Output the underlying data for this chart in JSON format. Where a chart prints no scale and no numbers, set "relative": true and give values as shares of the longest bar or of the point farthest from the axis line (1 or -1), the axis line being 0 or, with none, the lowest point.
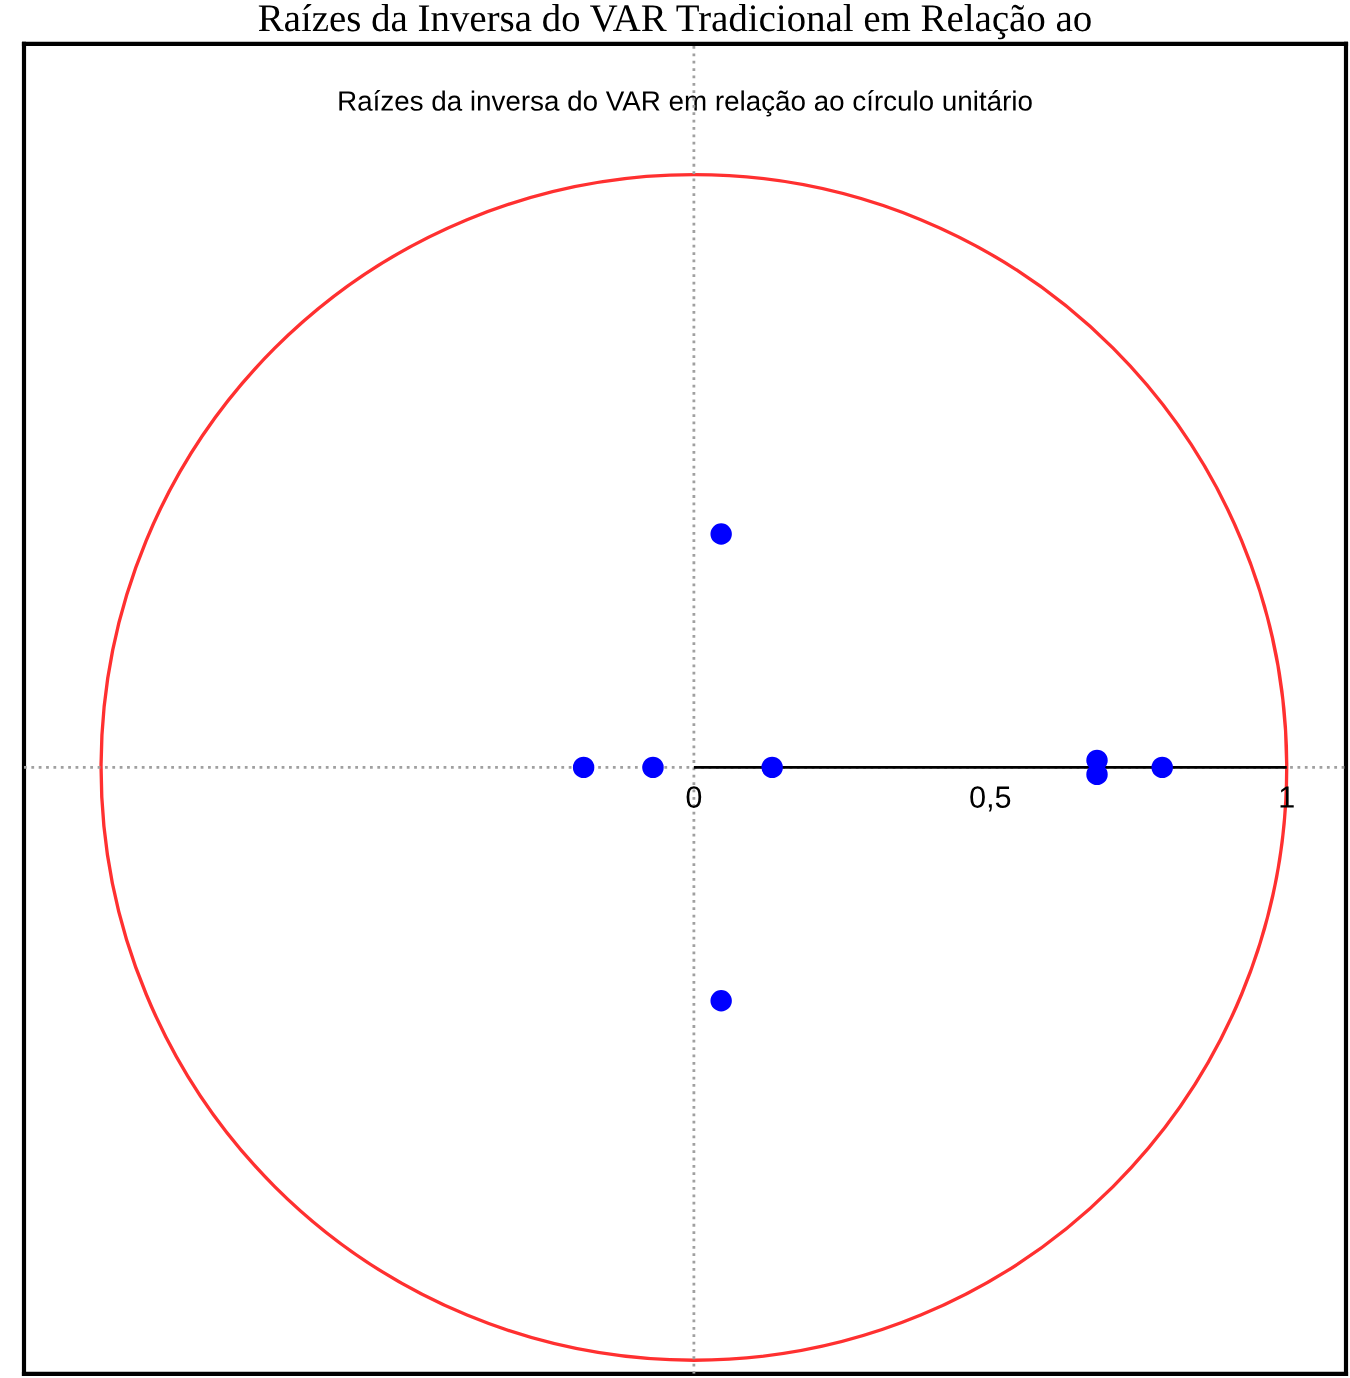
{
  "chart_data": {
    "type": "scatter",
    "title": "Raízes da inversa do VAR em relação ao círculo unitário",
    "annotations": [
      "Raízes da Inversa do VAR Tradicional em Relação ao"
    ],
    "x": [
      -0.186,
      -0.069,
      0.132,
      0.68,
      0.68,
      0.79,
      0.046,
      0.046
    ],
    "values": [
      0,
      0,
      0,
      0.03,
      -0.03,
      0,
      1,
      -1
    ],
    "relative": true,
    "color": "#0000ff",
    "marker": "circle",
    "xlim": [
      -1.13,
      1.1
    ],
    "xticks": [
      {
        "value": 0,
        "label": "0"
      },
      {
        "value": 0.5,
        "label": "0,5"
      },
      {
        "value": 1,
        "label": "1"
      }
    ],
    "tick_labels": "x",
    "ref_lines": [
      {
        "axis": "x",
        "value": 0,
        "color": "#a0a0a0",
        "line_style": "dotted"
      },
      {
        "axis": "y",
        "value": 0,
        "color": "#000000",
        "line_style": "solid"
      }
    ]
  }
}
